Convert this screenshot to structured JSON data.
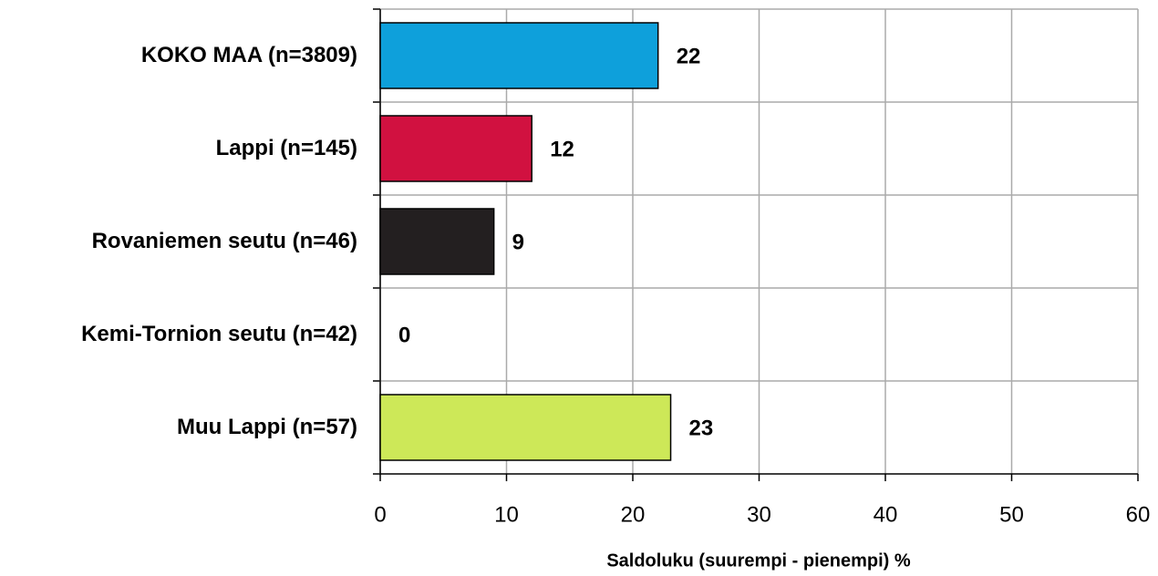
{
  "chart_data": {
    "type": "hbar",
    "categories": [
      "KOKO MAA (n=3809)",
      "Lappi (n=145)",
      "Rovaniemen seutu (n=46)",
      "Kemi-Tornion seutu (n=42)",
      "Muu Lappi (n=57)"
    ],
    "values": [
      22,
      12,
      9,
      0,
      23
    ],
    "colors": [
      "#0ea0db",
      "#d11140",
      "#231f20",
      "#ffffff",
      "#cde858"
    ],
    "xlabel": "Saldoluku (suurempi - pienempi) %",
    "xlim": [
      0,
      60
    ],
    "xticks": [
      0,
      10,
      20,
      30,
      40,
      50,
      60
    ],
    "grid": true
  }
}
